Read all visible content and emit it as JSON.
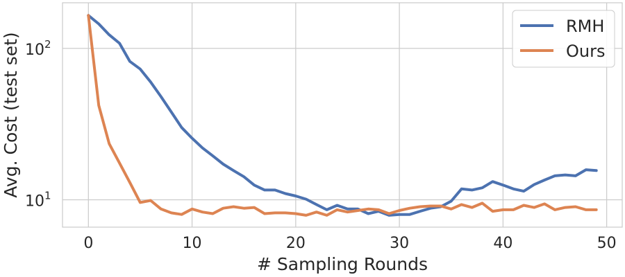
{
  "chart_data": {
    "type": "line",
    "xlabel": "# Sampling Rounds",
    "ylabel": "Avg. Cost (test set)",
    "xlim": [
      -2.5,
      51.5
    ],
    "ylim": [
      6.6,
      200
    ],
    "yscale": "log",
    "grid": true,
    "legend_position": "top-right",
    "xticks": [
      0,
      10,
      20,
      30,
      40,
      50
    ],
    "xtick_labels": [
      "0",
      "10",
      "20",
      "30",
      "40",
      "50"
    ],
    "yticks": [
      {
        "value": 10,
        "base": "10",
        "exp": "1"
      },
      {
        "value": 100,
        "base": "10",
        "exp": "2"
      }
    ],
    "x": [
      0,
      1,
      2,
      3,
      4,
      5,
      6,
      7,
      8,
      9,
      10,
      11,
      12,
      13,
      14,
      15,
      16,
      17,
      18,
      19,
      20,
      21,
      22,
      23,
      24,
      25,
      26,
      27,
      28,
      29,
      30,
      31,
      32,
      33,
      34,
      35,
      36,
      37,
      38,
      39,
      40,
      41,
      42,
      43,
      44,
      45,
      46,
      47,
      48,
      49
    ],
    "series": [
      {
        "name": "RMH",
        "color": "#4c72b0",
        "values": [
          165,
          145,
          123,
          108,
          82,
          73,
          60,
          48,
          38,
          30,
          25.5,
          22,
          19.5,
          17.2,
          15.6,
          14.2,
          12.5,
          11.6,
          11.6,
          11.0,
          10.6,
          10.1,
          9.3,
          8.6,
          9.2,
          8.7,
          8.7,
          8.1,
          8.4,
          7.9,
          8.0,
          8.0,
          8.4,
          8.8,
          9.0,
          9.8,
          11.8,
          11.6,
          12.0,
          13.2,
          12.5,
          11.8,
          11.4,
          12.6,
          13.5,
          14.4,
          14.6,
          14.4,
          15.8,
          15.6
        ]
      },
      {
        "name": "Ours",
        "color": "#dd8452",
        "values": [
          165,
          42,
          23.5,
          17.5,
          13,
          9.6,
          9.9,
          8.7,
          8.2,
          8.0,
          8.7,
          8.3,
          8.1,
          8.8,
          9.0,
          8.8,
          8.9,
          8.1,
          8.2,
          8.2,
          8.1,
          7.9,
          8.3,
          7.9,
          8.6,
          8.3,
          8.5,
          8.7,
          8.6,
          8.1,
          8.5,
          8.8,
          9.0,
          9.1,
          9.1,
          8.7,
          9.3,
          8.9,
          9.5,
          8.4,
          8.6,
          8.6,
          9.2,
          8.9,
          9.4,
          8.6,
          8.9,
          9.0,
          8.6,
          8.6
        ]
      }
    ]
  }
}
